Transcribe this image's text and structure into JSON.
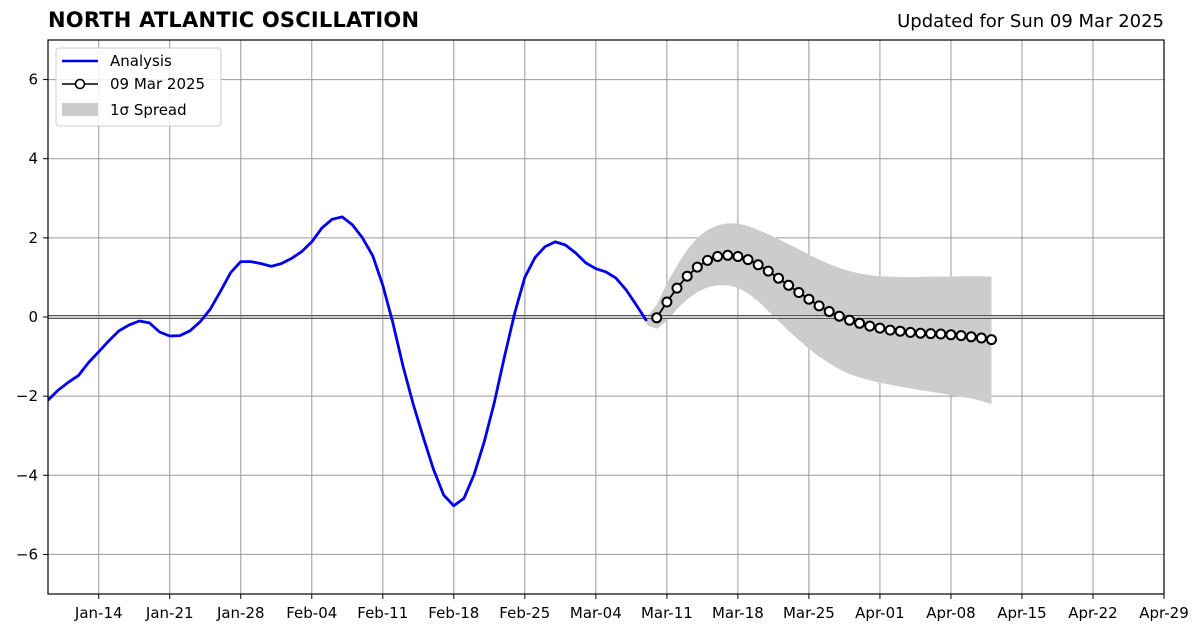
{
  "header": {
    "title": "NORTH ATLANTIC OSCILLATION",
    "updated": "Updated for Sun 09 Mar 2025"
  },
  "chart_data": {
    "type": "line",
    "title": "NORTH ATLANTIC OSCILLATION",
    "subtitle": "Updated for Sun 09 Mar 2025",
    "xlabel": "",
    "ylabel": "",
    "xlim": [
      "2025-01-09",
      "2025-04-29"
    ],
    "ylim": [
      -7,
      7
    ],
    "grid": true,
    "legend_position": "top-left",
    "x_tick_labels": [
      "Jan-14",
      "Jan-21",
      "Jan-28",
      "Feb-04",
      "Feb-11",
      "Feb-18",
      "Feb-25",
      "Mar-04",
      "Mar-11",
      "Mar-18",
      "Mar-25",
      "Apr-01",
      "Apr-08",
      "Apr-15",
      "Apr-22",
      "Apr-29"
    ],
    "x_tick_dates": [
      "2025-01-14",
      "2025-01-21",
      "2025-01-28",
      "2025-02-04",
      "2025-02-11",
      "2025-02-18",
      "2025-02-25",
      "2025-03-04",
      "2025-03-11",
      "2025-03-18",
      "2025-03-25",
      "2025-04-01",
      "2025-04-08",
      "2025-04-15",
      "2025-04-22",
      "2025-04-29"
    ],
    "y_ticks": [
      -6,
      -4,
      -2,
      0,
      2,
      4,
      6
    ],
    "y_tick_labels": [
      "−6",
      "−4",
      "−2",
      "0",
      "2",
      "4",
      "6"
    ],
    "colors": {
      "analysis": "#0000ee",
      "forecast": "#000000",
      "spread": "#cccccc",
      "zero_line": "#555555",
      "grid": "#999999"
    },
    "series": [
      {
        "name": "Analysis",
        "style": "line",
        "points": [
          [
            "2025-01-08",
            -2.2
          ],
          [
            "2025-01-09",
            -2.1
          ],
          [
            "2025-01-10",
            -1.85
          ],
          [
            "2025-01-11",
            -1.65
          ],
          [
            "2025-01-12",
            -1.48
          ],
          [
            "2025-01-13",
            -1.15
          ],
          [
            "2025-01-14",
            -0.88
          ],
          [
            "2025-01-15",
            -0.6
          ],
          [
            "2025-01-16",
            -0.35
          ],
          [
            "2025-01-17",
            -0.2
          ],
          [
            "2025-01-18",
            -0.1
          ],
          [
            "2025-01-19",
            -0.15
          ],
          [
            "2025-01-20",
            -0.38
          ],
          [
            "2025-01-21",
            -0.48
          ],
          [
            "2025-01-22",
            -0.47
          ],
          [
            "2025-01-23",
            -0.35
          ],
          [
            "2025-01-24",
            -0.12
          ],
          [
            "2025-01-25",
            0.2
          ],
          [
            "2025-01-26",
            0.65
          ],
          [
            "2025-01-27",
            1.12
          ],
          [
            "2025-01-28",
            1.4
          ],
          [
            "2025-01-29",
            1.4
          ],
          [
            "2025-01-30",
            1.35
          ],
          [
            "2025-01-31",
            1.28
          ],
          [
            "2025-02-01",
            1.35
          ],
          [
            "2025-02-02",
            1.48
          ],
          [
            "2025-02-03",
            1.65
          ],
          [
            "2025-02-04",
            1.9
          ],
          [
            "2025-02-05",
            2.25
          ],
          [
            "2025-02-06",
            2.47
          ],
          [
            "2025-02-07",
            2.53
          ],
          [
            "2025-02-08",
            2.33
          ],
          [
            "2025-02-09",
            2.0
          ],
          [
            "2025-02-10",
            1.55
          ],
          [
            "2025-02-11",
            0.8
          ],
          [
            "2025-02-12",
            -0.15
          ],
          [
            "2025-02-13",
            -1.25
          ],
          [
            "2025-02-14",
            -2.2
          ],
          [
            "2025-02-15",
            -3.05
          ],
          [
            "2025-02-16",
            -3.85
          ],
          [
            "2025-02-17",
            -4.5
          ],
          [
            "2025-02-18",
            -4.77
          ],
          [
            "2025-02-19",
            -4.58
          ],
          [
            "2025-02-20",
            -3.98
          ],
          [
            "2025-02-21",
            -3.15
          ],
          [
            "2025-02-22",
            -2.15
          ],
          [
            "2025-02-23",
            -1.0
          ],
          [
            "2025-02-24",
            0.1
          ],
          [
            "2025-02-25",
            1.0
          ],
          [
            "2025-02-26",
            1.5
          ],
          [
            "2025-02-27",
            1.78
          ],
          [
            "2025-02-28",
            1.9
          ],
          [
            "2025-03-01",
            1.82
          ],
          [
            "2025-03-02",
            1.62
          ],
          [
            "2025-03-03",
            1.37
          ],
          [
            "2025-03-04",
            1.22
          ],
          [
            "2025-03-05",
            1.14
          ],
          [
            "2025-03-06",
            0.98
          ],
          [
            "2025-03-07",
            0.68
          ],
          [
            "2025-03-08",
            0.3
          ],
          [
            "2025-03-09",
            -0.1
          ]
        ]
      },
      {
        "name": "09 Mar 2025",
        "style": "line-markers",
        "points": [
          [
            "2025-03-10",
            -0.02
          ],
          [
            "2025-03-11",
            0.38
          ],
          [
            "2025-03-12",
            0.73
          ],
          [
            "2025-03-13",
            1.03
          ],
          [
            "2025-03-14",
            1.26
          ],
          [
            "2025-03-15",
            1.43
          ],
          [
            "2025-03-16",
            1.53
          ],
          [
            "2025-03-17",
            1.56
          ],
          [
            "2025-03-18",
            1.53
          ],
          [
            "2025-03-19",
            1.45
          ],
          [
            "2025-03-20",
            1.32
          ],
          [
            "2025-03-21",
            1.16
          ],
          [
            "2025-03-22",
            0.98
          ],
          [
            "2025-03-23",
            0.8
          ],
          [
            "2025-03-24",
            0.62
          ],
          [
            "2025-03-25",
            0.45
          ],
          [
            "2025-03-26",
            0.28
          ],
          [
            "2025-03-27",
            0.14
          ],
          [
            "2025-03-28",
            0.02
          ],
          [
            "2025-03-29",
            -0.08
          ],
          [
            "2025-03-30",
            -0.16
          ],
          [
            "2025-03-31",
            -0.23
          ],
          [
            "2025-04-01",
            -0.28
          ],
          [
            "2025-04-02",
            -0.33
          ],
          [
            "2025-04-03",
            -0.36
          ],
          [
            "2025-04-04",
            -0.39
          ],
          [
            "2025-04-05",
            -0.41
          ],
          [
            "2025-04-06",
            -0.42
          ],
          [
            "2025-04-07",
            -0.43
          ],
          [
            "2025-04-08",
            -0.45
          ],
          [
            "2025-04-09",
            -0.47
          ],
          [
            "2025-04-10",
            -0.5
          ],
          [
            "2025-04-11",
            -0.53
          ],
          [
            "2025-04-12",
            -0.57
          ]
        ]
      },
      {
        "name": "1σ Spread",
        "style": "band",
        "points": [
          [
            "2025-03-09",
            -0.2,
            0.0
          ],
          [
            "2025-03-10",
            -0.3,
            0.3
          ],
          [
            "2025-03-11",
            -0.1,
            0.85
          ],
          [
            "2025-03-12",
            0.2,
            1.3
          ],
          [
            "2025-03-13",
            0.45,
            1.7
          ],
          [
            "2025-03-14",
            0.63,
            2.0
          ],
          [
            "2025-03-15",
            0.75,
            2.2
          ],
          [
            "2025-03-16",
            0.8,
            2.32
          ],
          [
            "2025-03-17",
            0.8,
            2.37
          ],
          [
            "2025-03-18",
            0.74,
            2.36
          ],
          [
            "2025-03-19",
            0.6,
            2.3
          ],
          [
            "2025-03-20",
            0.4,
            2.2
          ],
          [
            "2025-03-21",
            0.15,
            2.09
          ],
          [
            "2025-03-22",
            -0.1,
            1.97
          ],
          [
            "2025-03-23",
            -0.35,
            1.84
          ],
          [
            "2025-03-24",
            -0.58,
            1.71
          ],
          [
            "2025-03-25",
            -0.8,
            1.58
          ],
          [
            "2025-03-26",
            -1.0,
            1.45
          ],
          [
            "2025-03-27",
            -1.17,
            1.34
          ],
          [
            "2025-03-28",
            -1.32,
            1.24
          ],
          [
            "2025-03-29",
            -1.44,
            1.16
          ],
          [
            "2025-03-30",
            -1.53,
            1.1
          ],
          [
            "2025-03-31",
            -1.6,
            1.06
          ],
          [
            "2025-04-01",
            -1.66,
            1.03
          ],
          [
            "2025-04-02",
            -1.71,
            1.02
          ],
          [
            "2025-04-03",
            -1.76,
            1.01
          ],
          [
            "2025-04-04",
            -1.8,
            1.01
          ],
          [
            "2025-04-05",
            -1.85,
            1.01
          ],
          [
            "2025-04-06",
            -1.89,
            1.02
          ],
          [
            "2025-04-07",
            -1.93,
            1.02
          ],
          [
            "2025-04-08",
            -1.97,
            1.02
          ],
          [
            "2025-04-09",
            -2.02,
            1.03
          ],
          [
            "2025-04-10",
            -2.06,
            1.03
          ],
          [
            "2025-04-11",
            -2.12,
            1.03
          ],
          [
            "2025-04-12",
            -2.2,
            1.02
          ]
        ]
      }
    ]
  },
  "legend": {
    "items": [
      {
        "label": "Analysis",
        "symbol": "line"
      },
      {
        "label": "09 Mar 2025",
        "symbol": "line-marker"
      },
      {
        "label": "1σ Spread",
        "symbol": "patch"
      }
    ]
  }
}
